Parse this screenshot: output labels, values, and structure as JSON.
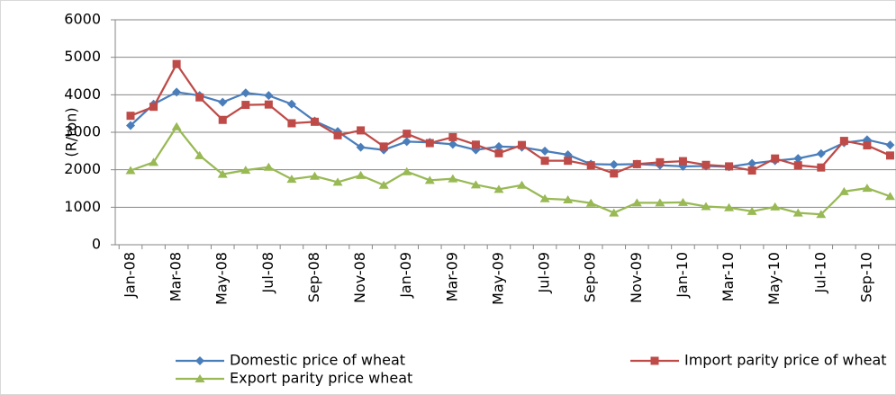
{
  "chart_data": {
    "type": "line",
    "y_label": "(R/ton)",
    "categories": [
      "Jan-08",
      null,
      "Mar-08",
      null,
      "May-08",
      null,
      "Jul-08",
      null,
      "Sep-08",
      null,
      "Nov-08",
      null,
      "Jan-09",
      null,
      "Mar-09",
      null,
      "May-09",
      null,
      "Jul-09",
      null,
      "Sep-09",
      null,
      "Nov-09",
      null,
      "Jan-10",
      null,
      "Mar-10",
      null,
      "May-10",
      null,
      "Jul-10",
      null,
      "Sep-10",
      null
    ],
    "series": [
      {
        "name": "Domestic price of wheat",
        "color": "#4a7ebb",
        "marker": "diamond",
        "values": [
          3180,
          3750,
          4070,
          3980,
          3800,
          4050,
          3980,
          3750,
          3300,
          3020,
          2600,
          2530,
          2750,
          2730,
          2680,
          2530,
          2620,
          2600,
          2500,
          2400,
          2150,
          2140,
          2150,
          2120,
          2090,
          2100,
          2080,
          2170,
          2240,
          2300,
          2430,
          2720,
          2800,
          2660
        ]
      },
      {
        "name": "Import parity price of wheat",
        "color": "#be4b48",
        "marker": "square",
        "values": [
          3440,
          3680,
          4820,
          3930,
          3330,
          3730,
          3740,
          3240,
          3280,
          2920,
          3050,
          2620,
          2960,
          2710,
          2870,
          2670,
          2440,
          2660,
          2240,
          2240,
          2120,
          1900,
          2150,
          2200,
          2230,
          2130,
          2090,
          1980,
          2300,
          2120,
          2060,
          2770,
          2650,
          2380
        ]
      },
      {
        "name": "Export parity price wheat",
        "color": "#98b954",
        "marker": "triangle",
        "values": [
          1980,
          2200,
          3150,
          2380,
          1880,
          1990,
          2070,
          1750,
          1830,
          1670,
          1850,
          1590,
          1950,
          1720,
          1760,
          1600,
          1480,
          1590,
          1230,
          1200,
          1110,
          850,
          1120,
          1120,
          1130,
          1020,
          990,
          890,
          1010,
          850,
          810,
          1420,
          1510,
          1290
        ]
      }
    ],
    "ylim": [
      0,
      6000
    ],
    "yticks": [
      0,
      1000,
      2000,
      3000,
      4000,
      5000,
      6000
    ],
    "grid": true
  }
}
